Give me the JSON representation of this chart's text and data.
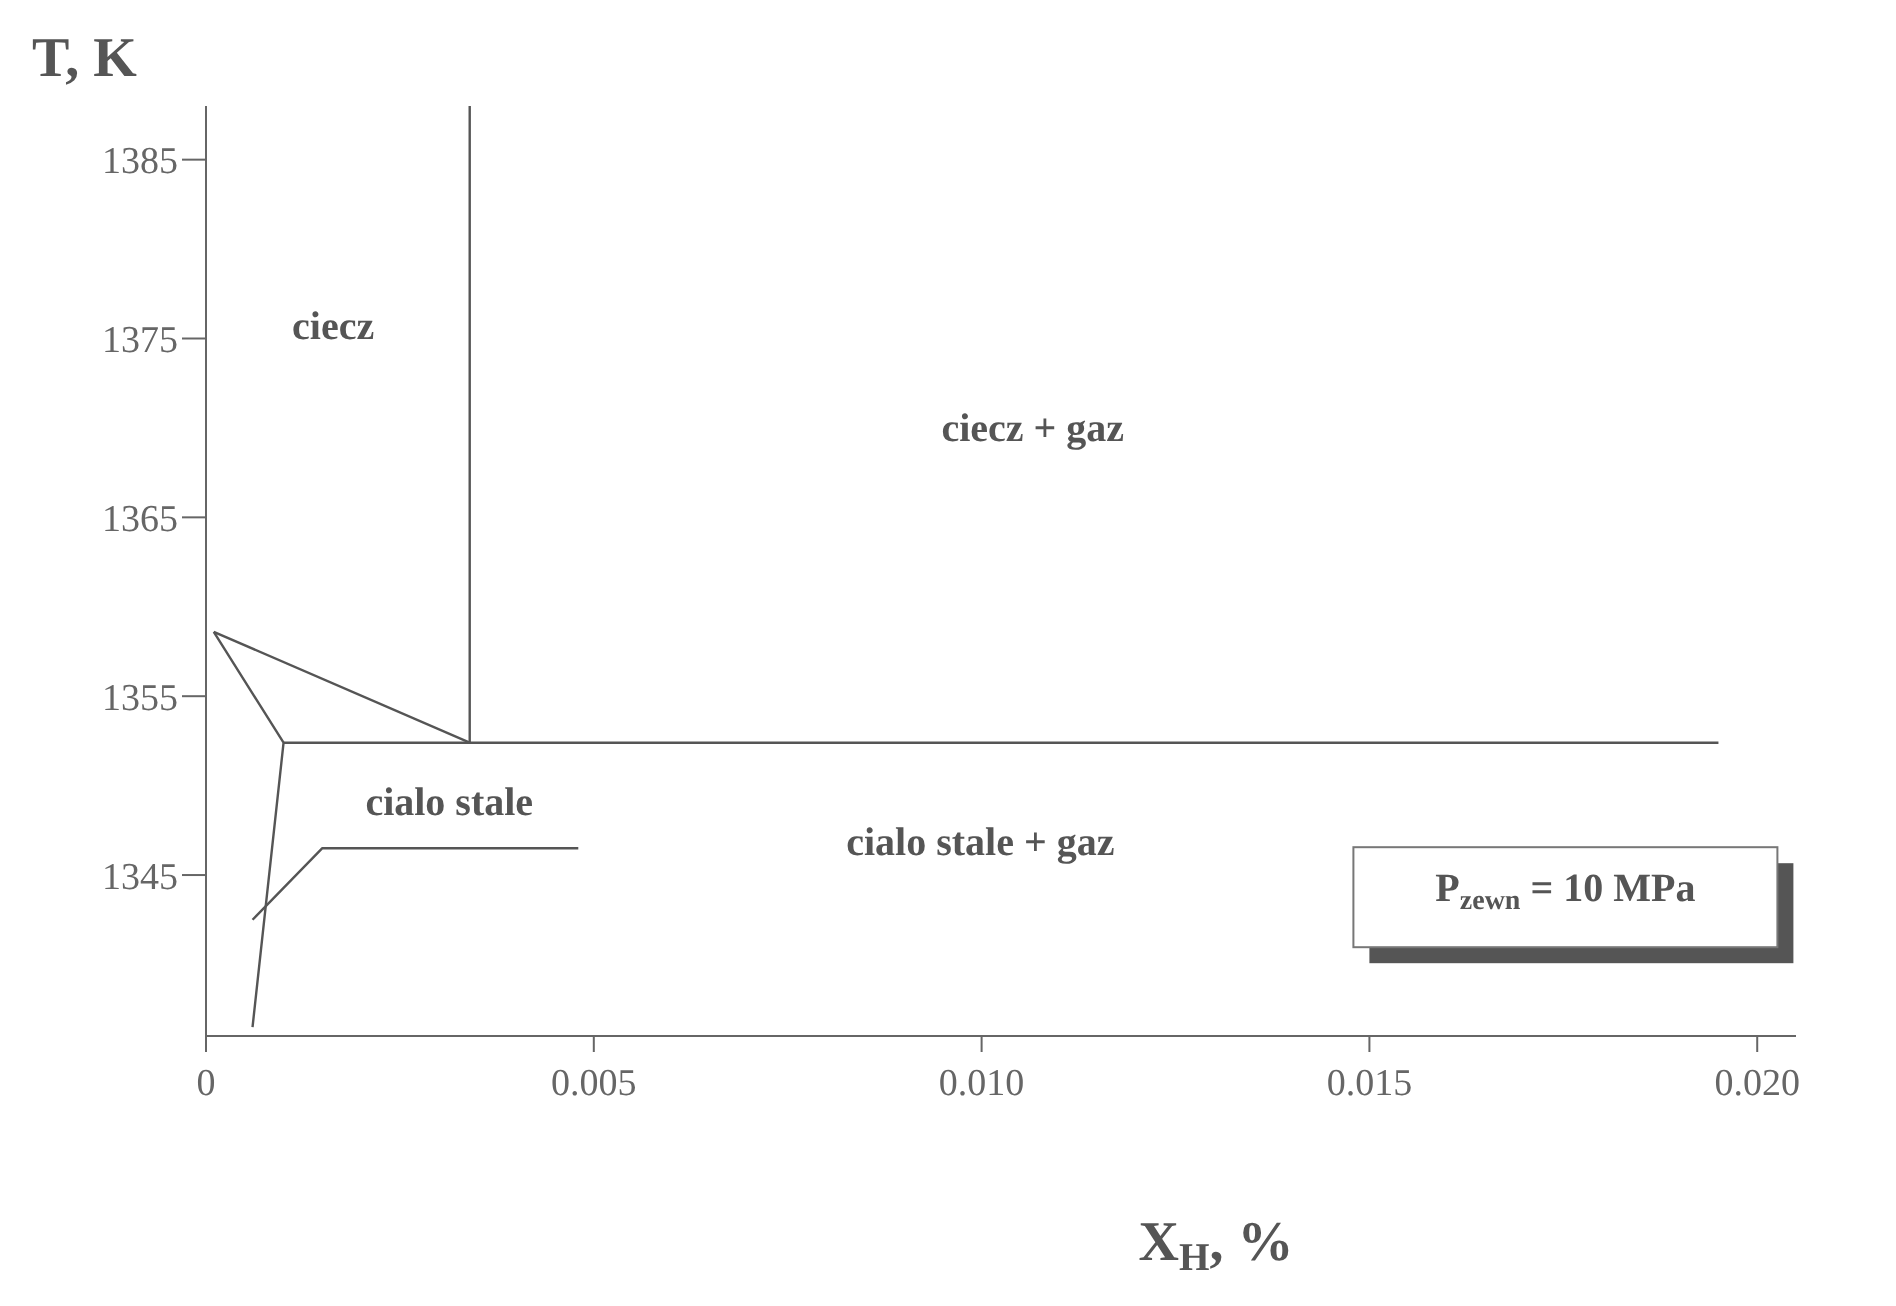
{
  "chart_data": {
    "type": "line",
    "xlabel": "X$_{H}$, %",
    "ylabel": "T, K",
    "xlim": [
      0,
      0.0205
    ],
    "ylim": [
      1336,
      1388
    ],
    "xticks": [
      0,
      0.005,
      {
        "value": 0.01,
        "label": "0.010"
      },
      {
        "value": 0.015,
        "label": "0.015"
      },
      {
        "value": 0.02,
        "label": "0.020"
      }
    ],
    "yticks": [
      1345,
      1355,
      1365,
      1375,
      1385
    ],
    "grid": false,
    "marker": "none",
    "line_style": "solid",
    "series": [
      {
        "color": "#555555",
        "x": [
          0.0034,
          0.0034
        ],
        "values": [
          1352.4,
          1388
        ]
      },
      {
        "color": "#555555",
        "x": [
          0.001,
          0.0195
        ],
        "values": [
          1352.4,
          1352.4
        ]
      },
      {
        "color": "#555555",
        "x": [
          0.0001,
          0.0034
        ],
        "values": [
          1358.6,
          1352.4
        ]
      },
      {
        "color": "#555555",
        "x": [
          0.0001,
          0.001,
          0.0006
        ],
        "values": [
          1358.6,
          1352.4,
          1336.5
        ]
      },
      {
        "color": "#555555",
        "x": [
          0.0006,
          0.0015,
          0.0048
        ],
        "values": [
          1342.5,
          1346.5,
          1346.5
        ]
      }
    ],
    "annotations": [
      "ciecz",
      "ciecz + gaz",
      "cialo stale",
      "cialo stale + gaz",
      "P$_{zewn}$ = 10 MPa"
    ]
  }
}
